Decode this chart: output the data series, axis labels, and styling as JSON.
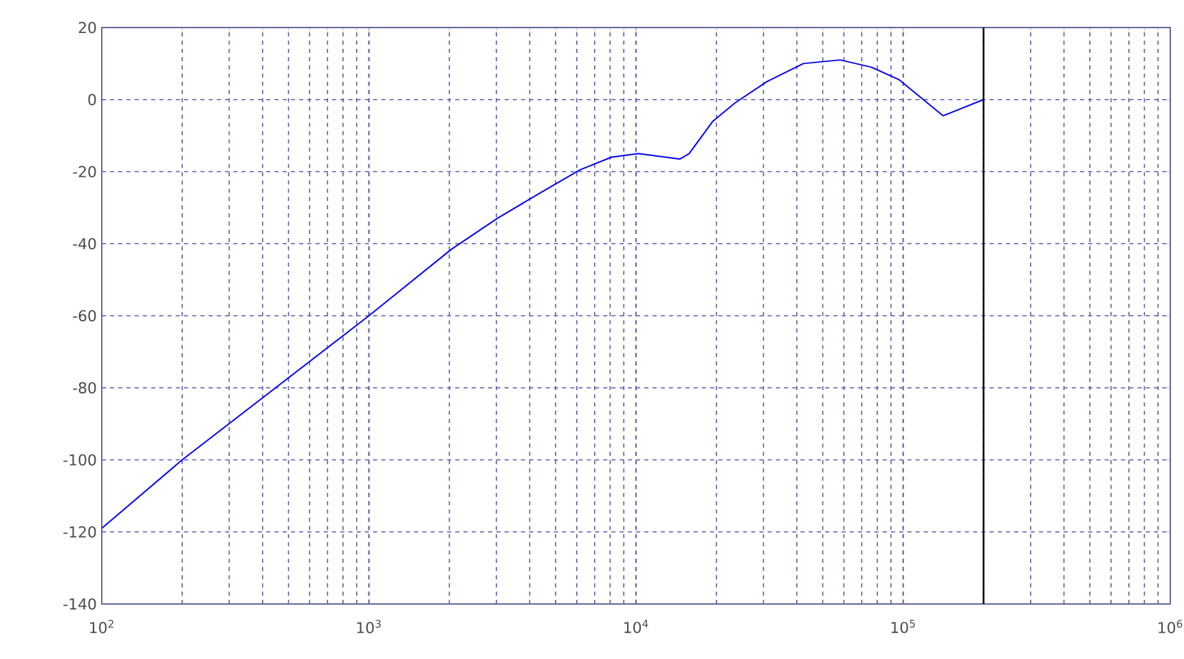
{
  "chart_data": {
    "type": "line",
    "log": "x",
    "grid": true,
    "marker": "none",
    "line_style": "solid",
    "xlim": [
      100,
      1000000
    ],
    "ylim": [
      -140,
      20
    ],
    "xticks": [
      {
        "value": 100,
        "label": "10$^{2}$"
      },
      {
        "value": 1000,
        "label": "10$^{3}$"
      },
      {
        "value": 10000,
        "label": "10$^{4}$"
      },
      {
        "value": 100000,
        "label": "10$^{5}$"
      },
      {
        "value": 1000000,
        "label": "10$^{6}$"
      }
    ],
    "yticks": [
      -140,
      -120,
      -100,
      -80,
      -60,
      -40,
      -20,
      0,
      20
    ],
    "ref_lines": [
      {
        "axis": "x",
        "value": 200000,
        "color": "#000000"
      }
    ],
    "series": [
      {
        "color": "#0000ff",
        "x": [
          100,
          200,
          1000,
          2040,
          3020,
          4470,
          6170,
          8090,
          10200,
          14600,
          15800,
          19400,
          23400,
          30900,
          42300,
          58100,
          75900,
          96600,
          141000,
          200000
        ],
        "values": [
          -119,
          -100,
          -60,
          -41.5,
          -33,
          -25.5,
          -19.5,
          -16,
          -15,
          -16.5,
          -15,
          -6,
          -1,
          5,
          10,
          11,
          9,
          5.5,
          -4.5,
          0
        ]
      }
    ]
  }
}
